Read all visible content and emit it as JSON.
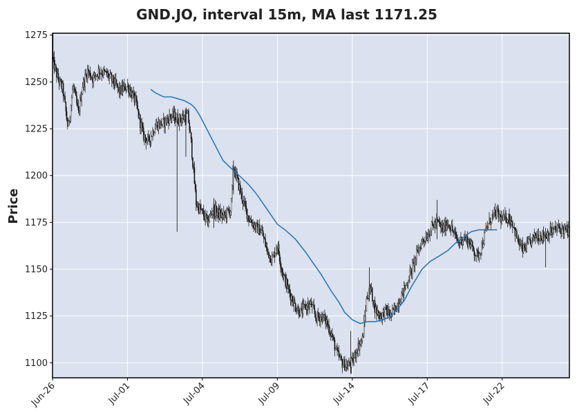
{
  "chart_data": {
    "type": "candlestick",
    "title": "GND.JO, interval 15m, MA last 1171.25",
    "ylabel": "Price",
    "xlabel": "",
    "ylim": [
      1092,
      1276
    ],
    "grid": true,
    "x_ticks": [
      {
        "label": "Jun-26",
        "t": 0
      },
      {
        "label": "Jul-01",
        "t": 0.145
      },
      {
        "label": "Jul-04",
        "t": 0.29
      },
      {
        "label": "Jul-09",
        "t": 0.435
      },
      {
        "label": "Jul-14",
        "t": 0.58
      },
      {
        "label": "Jul-17",
        "t": 0.725
      },
      {
        "label": "Jul-22",
        "t": 0.87
      }
    ],
    "y_ticks": [
      1100,
      1125,
      1150,
      1175,
      1200,
      1225,
      1250,
      1275
    ],
    "price_path": [
      [
        0.0,
        1262
      ],
      [
        0.01,
        1252
      ],
      [
        0.02,
        1246
      ],
      [
        0.03,
        1225
      ],
      [
        0.04,
        1248
      ],
      [
        0.05,
        1233
      ],
      [
        0.058,
        1248
      ],
      [
        0.068,
        1256
      ],
      [
        0.078,
        1252
      ],
      [
        0.09,
        1256
      ],
      [
        0.105,
        1254
      ],
      [
        0.118,
        1250
      ],
      [
        0.13,
        1245
      ],
      [
        0.145,
        1248
      ],
      [
        0.16,
        1240
      ],
      [
        0.175,
        1222
      ],
      [
        0.185,
        1218
      ],
      [
        0.2,
        1227
      ],
      [
        0.215,
        1228
      ],
      [
        0.23,
        1232
      ],
      [
        0.245,
        1230
      ],
      [
        0.262,
        1232
      ],
      [
        0.268,
        1218
      ],
      [
        0.272,
        1205
      ],
      [
        0.278,
        1185
      ],
      [
        0.29,
        1180
      ],
      [
        0.3,
        1175
      ],
      [
        0.31,
        1182
      ],
      [
        0.32,
        1180
      ],
      [
        0.33,
        1178
      ],
      [
        0.345,
        1182
      ],
      [
        0.35,
        1205
      ],
      [
        0.36,
        1195
      ],
      [
        0.37,
        1185
      ],
      [
        0.38,
        1177
      ],
      [
        0.395,
        1172
      ],
      [
        0.405,
        1170
      ],
      [
        0.415,
        1160
      ],
      [
        0.425,
        1155
      ],
      [
        0.435,
        1163
      ],
      [
        0.445,
        1148
      ],
      [
        0.455,
        1140
      ],
      [
        0.47,
        1130
      ],
      [
        0.48,
        1127
      ],
      [
        0.49,
        1130
      ],
      [
        0.5,
        1131
      ],
      [
        0.51,
        1124
      ],
      [
        0.52,
        1125
      ],
      [
        0.53,
        1122
      ],
      [
        0.54,
        1115
      ],
      [
        0.55,
        1105
      ],
      [
        0.56,
        1100
      ],
      [
        0.57,
        1098
      ],
      [
        0.58,
        1100
      ],
      [
        0.59,
        1108
      ],
      [
        0.6,
        1113
      ],
      [
        0.608,
        1135
      ],
      [
        0.615,
        1140
      ],
      [
        0.625,
        1128
      ],
      [
        0.635,
        1125
      ],
      [
        0.645,
        1128
      ],
      [
        0.655,
        1125
      ],
      [
        0.665,
        1130
      ],
      [
        0.675,
        1136
      ],
      [
        0.685,
        1142
      ],
      [
        0.695,
        1150
      ],
      [
        0.705,
        1158
      ],
      [
        0.715,
        1165
      ],
      [
        0.725,
        1168
      ],
      [
        0.735,
        1173
      ],
      [
        0.745,
        1175
      ],
      [
        0.755,
        1171
      ],
      [
        0.765,
        1175
      ],
      [
        0.775,
        1170
      ],
      [
        0.785,
        1164
      ],
      [
        0.795,
        1167
      ],
      [
        0.805,
        1165
      ],
      [
        0.815,
        1160
      ],
      [
        0.822,
        1157
      ],
      [
        0.83,
        1162
      ],
      [
        0.84,
        1172
      ],
      [
        0.85,
        1178
      ],
      [
        0.86,
        1180
      ],
      [
        0.87,
        1176
      ],
      [
        0.88,
        1178
      ],
      [
        0.89,
        1175
      ],
      [
        0.9,
        1165
      ],
      [
        0.91,
        1160
      ],
      [
        0.92,
        1163
      ],
      [
        0.935,
        1168
      ],
      [
        0.95,
        1168
      ],
      [
        0.965,
        1170
      ],
      [
        0.98,
        1172
      ],
      [
        1.0,
        1170
      ]
    ],
    "price_spikes": [
      {
        "t": 0.001,
        "high": 1276,
        "low": 1262
      },
      {
        "t": 0.241,
        "high": 1229,
        "low": 1170
      },
      {
        "t": 0.258,
        "high": 1236,
        "low": 1210
      },
      {
        "t": 0.312,
        "high": 1188,
        "low": 1172
      },
      {
        "t": 0.35,
        "high": 1208,
        "low": 1190
      },
      {
        "t": 0.577,
        "high": 1117,
        "low": 1094
      },
      {
        "t": 0.613,
        "high": 1151,
        "low": 1133
      },
      {
        "t": 0.744,
        "high": 1187,
        "low": 1166
      },
      {
        "t": 0.954,
        "high": 1172,
        "low": 1151
      }
    ],
    "ma_series": [
      [
        0.19,
        1246
      ],
      [
        0.2,
        1244
      ],
      [
        0.215,
        1242
      ],
      [
        0.23,
        1242
      ],
      [
        0.242,
        1241
      ],
      [
        0.255,
        1240
      ],
      [
        0.268,
        1238
      ],
      [
        0.276,
        1236
      ],
      [
        0.285,
        1232
      ],
      [
        0.3,
        1224
      ],
      [
        0.315,
        1216
      ],
      [
        0.33,
        1208
      ],
      [
        0.345,
        1204
      ],
      [
        0.365,
        1199
      ],
      [
        0.38,
        1195
      ],
      [
        0.395,
        1190
      ],
      [
        0.41,
        1184
      ],
      [
        0.425,
        1178
      ],
      [
        0.435,
        1174
      ],
      [
        0.45,
        1171
      ],
      [
        0.47,
        1166
      ],
      [
        0.49,
        1159
      ],
      [
        0.505,
        1153
      ],
      [
        0.52,
        1147
      ],
      [
        0.54,
        1138
      ],
      [
        0.555,
        1132
      ],
      [
        0.565,
        1127
      ],
      [
        0.58,
        1123
      ],
      [
        0.595,
        1121
      ],
      [
        0.61,
        1122
      ],
      [
        0.625,
        1122
      ],
      [
        0.64,
        1123
      ],
      [
        0.655,
        1125
      ],
      [
        0.665,
        1128
      ],
      [
        0.68,
        1133
      ],
      [
        0.695,
        1141
      ],
      [
        0.715,
        1150
      ],
      [
        0.73,
        1154
      ],
      [
        0.748,
        1157
      ],
      [
        0.765,
        1160
      ],
      [
        0.78,
        1164
      ],
      [
        0.795,
        1167
      ],
      [
        0.81,
        1170
      ],
      [
        0.825,
        1171
      ],
      [
        0.84,
        1171
      ],
      [
        0.85,
        1171
      ],
      [
        0.86,
        1171
      ]
    ],
    "colors": {
      "background": "#dbe1ee",
      "up": "#ffffff",
      "down": "#111111",
      "ma": "#2a7ab9",
      "grid": "#ffffff"
    }
  }
}
